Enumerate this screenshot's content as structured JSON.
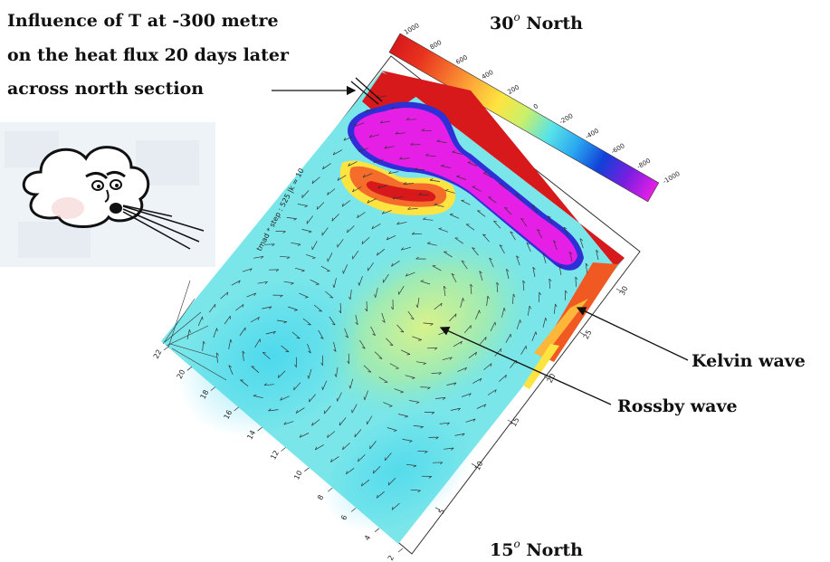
{
  "annotation": {
    "line1": "Influence of T at -300 metre",
    "line2": "on the heat flux 20 days later",
    "line3": "across north section"
  },
  "north_top": {
    "value": "30",
    "sup": "o",
    "word": "North"
  },
  "north_bottom": {
    "value": "15",
    "sup": "o",
    "word": "North"
  },
  "labels": {
    "kelvin": "Kelvin wave",
    "rossby": "Rossby wave"
  },
  "axis_caption": "tmad * step : 525 |k = 10",
  "colorbar_ticks": [
    "1000",
    "800",
    "600",
    "400",
    "200",
    "0",
    "-200",
    "-400",
    "-600",
    "-800",
    "-1000"
  ],
  "colorbar_colors": [
    "#d7191c",
    "#e8321e",
    "#f46d2b",
    "#fdae3a",
    "#fee440",
    "#c9f06a",
    "#58e3e8",
    "#2aa7f0",
    "#1140d8",
    "#7a1ee0",
    "#e61fe6"
  ],
  "right_axis_ticks": [
    "5",
    "10",
    "15",
    "20",
    "25",
    "30"
  ],
  "left_axis_ticks": [
    "2",
    "4",
    "6",
    "8",
    "10",
    "12",
    "14",
    "16",
    "18",
    "20",
    "22"
  ],
  "icons": {
    "cloud": "blowing-cloud-icon"
  }
}
